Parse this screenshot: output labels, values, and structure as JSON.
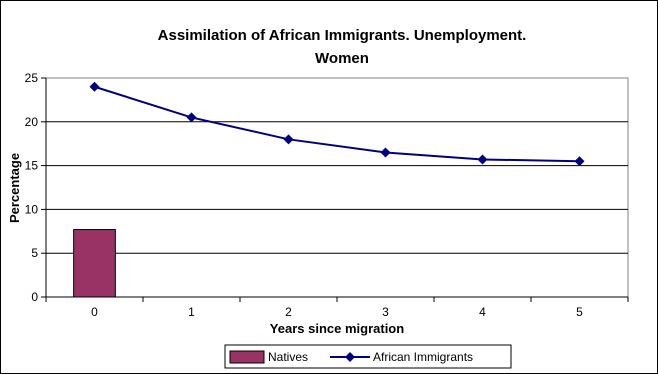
{
  "chart_data": {
    "type": "bar+line",
    "title_line1": "Assimilation of African Immigrants. Unemployment.",
    "title_line2": "Women",
    "xlabel": "Years since migration",
    "ylabel": "Percentage",
    "categories": [
      "0",
      "1",
      "2",
      "3",
      "4",
      "5"
    ],
    "ylim": [
      0,
      25
    ],
    "yticks": [
      "0",
      "5",
      "10",
      "15",
      "20",
      "25"
    ],
    "grid": true,
    "legend_position": "bottom",
    "series": [
      {
        "name": "Natives",
        "kind": "bar",
        "color": "#993366",
        "values": [
          7.7,
          null,
          null,
          null,
          null,
          null
        ]
      },
      {
        "name": "African Immigrants",
        "kind": "line",
        "color": "#000080",
        "values": [
          24.0,
          20.5,
          18.0,
          16.5,
          15.7,
          15.5
        ]
      }
    ]
  }
}
